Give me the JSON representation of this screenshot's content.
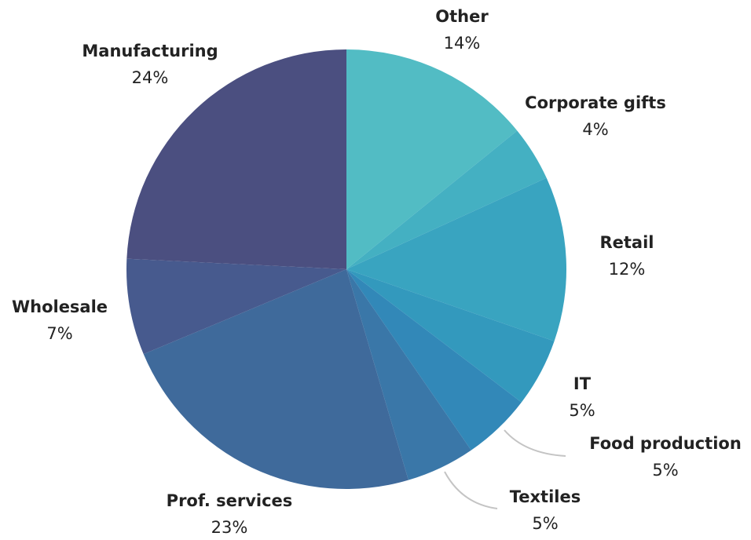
{
  "chart_data": {
    "type": "pie",
    "title": "",
    "start": "12 o'clock",
    "direction": "clockwise",
    "legend": "none",
    "slices": [
      {
        "label": "Other",
        "value": 14,
        "value_label": "14%",
        "color": "#52bcc4"
      },
      {
        "label": "Corporate gifts",
        "value": 4,
        "value_label": "4%",
        "color": "#44b0c2"
      },
      {
        "label": "Retail",
        "value": 12,
        "value_label": "12%",
        "color": "#39a4c0"
      },
      {
        "label": "IT",
        "value": 5,
        "value_label": "5%",
        "color": "#3399bd"
      },
      {
        "label": "Food production",
        "value": 5,
        "value_label": "5%",
        "color": "#3288b8"
      },
      {
        "label": "Textiles",
        "value": 5,
        "value_label": "5%",
        "color": "#3a77a8"
      },
      {
        "label": "Prof. services",
        "value": 23,
        "value_label": "23%",
        "color": "#3f6a9b"
      },
      {
        "label": "Wholesale",
        "value": 7,
        "value_label": "7%",
        "color": "#475a8e"
      },
      {
        "label": "Manufacturing",
        "value": 24,
        "value_label": "24%",
        "color": "#4b4f80"
      }
    ]
  }
}
